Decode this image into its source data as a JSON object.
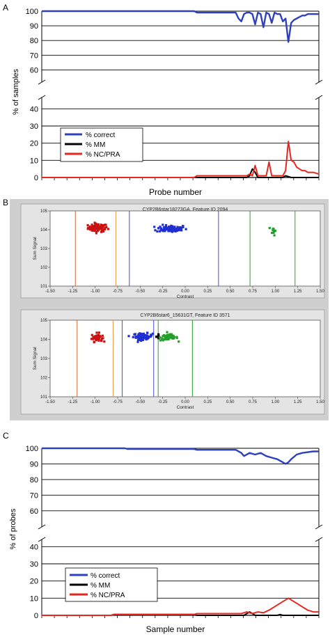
{
  "panel_a": {
    "letter": "A",
    "ylabel": "% of samples",
    "xlabel": "Probe number",
    "legend": [
      "% correct",
      "% MM",
      "% NC/PRA"
    ]
  },
  "panel_b": {
    "letter": "B",
    "plots": [
      {
        "title": "CYP2B6star18273GA, Feature ID 2094",
        "xlabel": "Contrast",
        "ylabel": "Sum Signal"
      },
      {
        "title": "CYP2B6star6_15631GT, Feature ID 3571",
        "xlabel": "Contrast",
        "ylabel": "Sum Signal"
      }
    ],
    "x_ticks": [
      "-1.50",
      "-1.25",
      "-1.00",
      "-0.75",
      "-0.50",
      "-0.25",
      "0.00",
      "0.25",
      "0.50",
      "0.75",
      "1.00",
      "1.25",
      "1.50"
    ],
    "y_ticks": [
      "10^1",
      "10^2",
      "10^3",
      "10^4",
      "10^5"
    ]
  },
  "panel_c": {
    "letter": "C",
    "ylabel": "% of probes",
    "xlabel": "Sample number",
    "legend": [
      "% correct",
      "% MM",
      "% NC/PRA"
    ]
  },
  "colors": {
    "correct": "#2e3fbf",
    "mm": "#000000",
    "ncpra": "#e8261e",
    "cluster_red": "#cc1111",
    "cluster_blue": "#1f2fd0",
    "cluster_green": "#22a02a"
  },
  "chart_data": [
    {
      "type": "line",
      "panel": "A",
      "ylabel": "% of samples",
      "xlabel": "Probe number",
      "broken_axis": true,
      "ylim_upper": [
        55,
        100
      ],
      "ylim_lower": [
        0,
        45
      ],
      "y_ticks_upper": [
        60,
        70,
        80,
        90,
        100
      ],
      "y_ticks_lower": [
        0,
        10,
        20,
        30,
        40
      ],
      "x_range": [
        0,
        100
      ],
      "series": [
        {
          "name": "% correct",
          "points": [
            [
              0,
              100
            ],
            [
              55,
              100
            ],
            [
              56,
              99
            ],
            [
              70,
              99
            ],
            [
              71,
              95
            ],
            [
              72,
              93
            ],
            [
              73,
              98
            ],
            [
              74,
              99
            ],
            [
              75,
              99
            ],
            [
              76,
              98
            ],
            [
              77,
              91
            ],
            [
              78,
              99
            ],
            [
              79,
              98
            ],
            [
              80,
              89
            ],
            [
              81,
              99
            ],
            [
              82,
              98
            ],
            [
              83,
              92
            ],
            [
              84,
              99
            ],
            [
              85,
              98
            ],
            [
              86,
              98
            ],
            [
              87,
              93
            ],
            [
              88,
              95
            ],
            [
              89,
              79
            ],
            [
              90,
              92
            ],
            [
              91,
              94
            ],
            [
              92,
              95
            ],
            [
              93,
              96
            ],
            [
              94,
              97
            ],
            [
              95,
              97
            ],
            [
              96,
              98
            ],
            [
              97,
              98
            ],
            [
              98,
              98
            ],
            [
              100,
              98
            ]
          ]
        },
        {
          "name": "% MM",
          "points": [
            [
              0,
              0
            ],
            [
              55,
              0
            ],
            [
              56,
              0
            ],
            [
              74,
              0
            ],
            [
              75,
              1
            ],
            [
              76,
              5
            ],
            [
              77,
              3
            ],
            [
              78,
              0
            ],
            [
              86,
              0
            ],
            [
              87,
              0
            ],
            [
              88,
              1
            ],
            [
              90,
              0
            ],
            [
              100,
              0
            ]
          ]
        },
        {
          "name": "% NC/PRA",
          "points": [
            [
              0,
              0
            ],
            [
              55,
              0
            ],
            [
              56,
              1
            ],
            [
              74,
              1
            ],
            [
              75,
              2
            ],
            [
              76,
              1
            ],
            [
              77,
              7
            ],
            [
              78,
              1
            ],
            [
              81,
              1
            ],
            [
              82,
              9
            ],
            [
              83,
              1
            ],
            [
              87,
              1
            ],
            [
              88,
              4
            ],
            [
              89,
              21
            ],
            [
              90,
              10
            ],
            [
              91,
              9
            ],
            [
              92,
              6
            ],
            [
              93,
              5
            ],
            [
              94,
              4
            ],
            [
              95,
              4
            ],
            [
              96,
              3
            ],
            [
              97,
              3
            ],
            [
              98,
              3
            ],
            [
              100,
              2
            ]
          ]
        }
      ]
    },
    {
      "type": "scatter",
      "panel": "B",
      "title": "CYP2B6star18273GA, Feature ID 2094",
      "xlabel": "Contrast",
      "ylabel": "Sum Signal",
      "xlim": [
        -1.5,
        1.5
      ],
      "ylim_log10": [
        1,
        5
      ],
      "vertical_lines": [
        {
          "x": -1.22,
          "color": "#e0602a"
        },
        {
          "x": -0.77,
          "color": "#e89a50"
        },
        {
          "x": -0.62,
          "color": "#4a4ad0"
        },
        {
          "x": 0.37,
          "color": "#4a4ad0"
        },
        {
          "x": 0.72,
          "color": "#2aa02a"
        },
        {
          "x": 1.22,
          "color": "#2aa02a"
        }
      ],
      "clusters": [
        {
          "name": "red",
          "x_center": -0.97,
          "y_log10_center": 4.1,
          "spread_x": 0.09,
          "spread_y": 0.18,
          "count": 80
        },
        {
          "name": "blue",
          "x_center": -0.15,
          "y_log10_center": 4.05,
          "spread_x": 0.14,
          "spread_y": 0.16,
          "count": 90
        },
        {
          "name": "green",
          "x_center": 0.98,
          "y_log10_center": 3.95,
          "spread_x": 0.02,
          "spread_y": 0.2,
          "count": 12
        }
      ]
    },
    {
      "type": "scatter",
      "panel": "B",
      "title": "CYP2B6star6_15631GT, Feature ID 3571",
      "xlabel": "Contrast",
      "ylabel": "Sum Signal",
      "xlim": [
        -1.5,
        1.5
      ],
      "ylim_log10": [
        1,
        5
      ],
      "vertical_lines": [
        {
          "x": -1.2,
          "color": "#e0602a"
        },
        {
          "x": -0.8,
          "color": "#e89a50"
        },
        {
          "x": -0.7,
          "color": "#4a4ad0"
        },
        {
          "x": -0.35,
          "color": "#4a4ad0"
        },
        {
          "x": -0.3,
          "color": "#2aa02a"
        },
        {
          "x": 0.08,
          "color": "#2aa02a"
        }
      ],
      "clusters": [
        {
          "name": "red",
          "x_center": -0.98,
          "y_log10_center": 4.1,
          "spread_x": 0.05,
          "spread_y": 0.18,
          "count": 40
        },
        {
          "name": "blue",
          "x_center": -0.47,
          "y_log10_center": 4.15,
          "spread_x": 0.09,
          "spread_y": 0.14,
          "count": 80
        },
        {
          "name": "black",
          "x_center": -0.3,
          "y_log10_center": 4.15,
          "spread_x": 0.02,
          "spread_y": 0.08,
          "count": 8
        },
        {
          "name": "green",
          "x_center": -0.18,
          "y_log10_center": 4.1,
          "spread_x": 0.08,
          "spread_y": 0.14,
          "count": 60
        }
      ]
    },
    {
      "type": "line",
      "panel": "C",
      "ylabel": "% of probes",
      "xlabel": "Sample number",
      "broken_axis": true,
      "ylim_upper": [
        55,
        100
      ],
      "ylim_lower": [
        0,
        45
      ],
      "y_ticks_upper": [
        60,
        70,
        80,
        90,
        100
      ],
      "y_ticks_lower": [
        0,
        10,
        20,
        30,
        40
      ],
      "x_range": [
        0,
        100
      ],
      "series": [
        {
          "name": "% correct",
          "points": [
            [
              0,
              100
            ],
            [
              30,
              100
            ],
            [
              31,
              99.5
            ],
            [
              55,
              99.5
            ],
            [
              56,
              99
            ],
            [
              70,
              99
            ],
            [
              72,
              97
            ],
            [
              73,
              95
            ],
            [
              75,
              97
            ],
            [
              77,
              96
            ],
            [
              79,
              97
            ],
            [
              81,
              95
            ],
            [
              83,
              94
            ],
            [
              85,
              93
            ],
            [
              87,
              91
            ],
            [
              88,
              90
            ],
            [
              89,
              91
            ],
            [
              90,
              93
            ],
            [
              92,
              96
            ],
            [
              94,
              97
            ],
            [
              96,
              97.5
            ],
            [
              98,
              98
            ],
            [
              100,
              98
            ]
          ]
        },
        {
          "name": "% MM",
          "points": [
            [
              0,
              0
            ],
            [
              25,
              0
            ],
            [
              26,
              0.5
            ],
            [
              55,
              0.5
            ],
            [
              56,
              0
            ],
            [
              73,
              0
            ],
            [
              74,
              1
            ],
            [
              75,
              2
            ],
            [
              76,
              1
            ],
            [
              77,
              0
            ],
            [
              85,
              0
            ],
            [
              86,
              0.5
            ],
            [
              87,
              0
            ],
            [
              100,
              0
            ]
          ]
        },
        {
          "name": "% NC/PRA",
          "points": [
            [
              0,
              0
            ],
            [
              25,
              0
            ],
            [
              26,
              0.5
            ],
            [
              55,
              0.5
            ],
            [
              56,
              1
            ],
            [
              70,
              1
            ],
            [
              72,
              1
            ],
            [
              74,
              2
            ],
            [
              76,
              1
            ],
            [
              78,
              2
            ],
            [
              80,
              1.5
            ],
            [
              82,
              3
            ],
            [
              84,
              5
            ],
            [
              86,
              7
            ],
            [
              88,
              9
            ],
            [
              89,
              10
            ],
            [
              90,
              9
            ],
            [
              92,
              7
            ],
            [
              94,
              5
            ],
            [
              96,
              3
            ],
            [
              98,
              2
            ],
            [
              100,
              2
            ]
          ]
        }
      ]
    }
  ]
}
